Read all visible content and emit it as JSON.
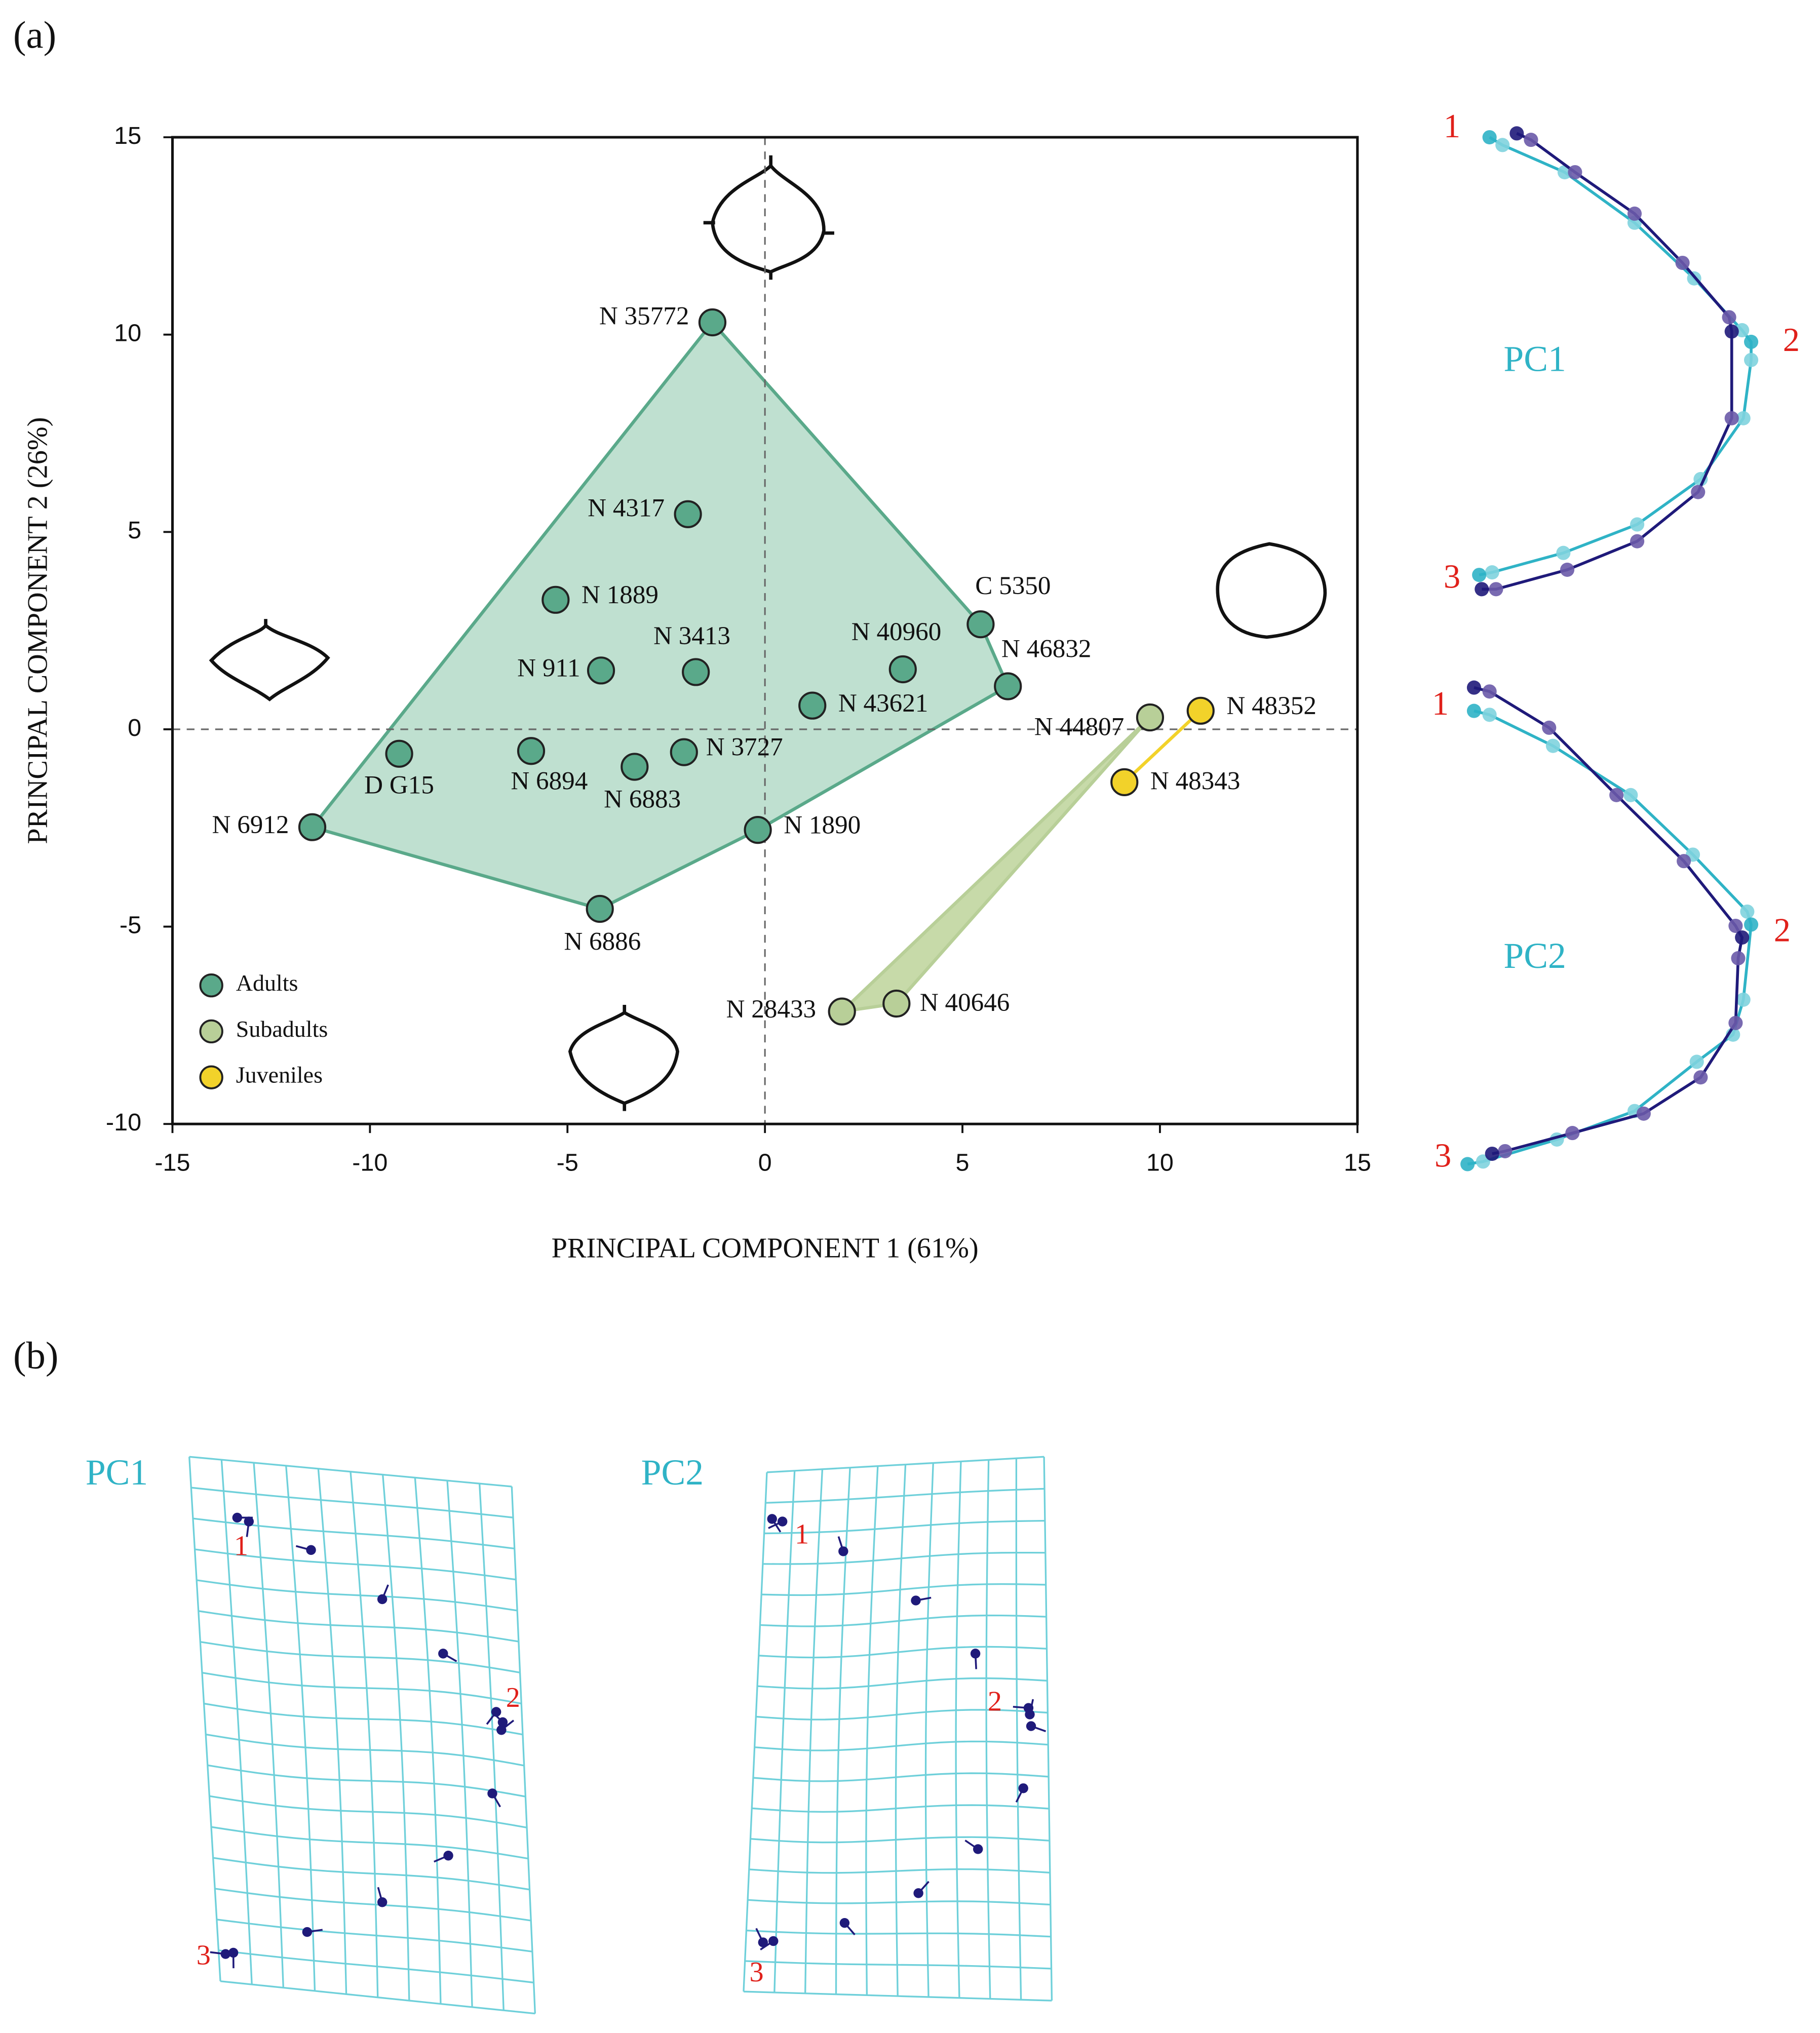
{
  "panel_labels": [
    "(a)",
    "(b)"
  ],
  "chart_data": {
    "type": "scatter",
    "xlabel": "PRINCIPAL COMPONENT 1 (61%)",
    "ylabel": "PRINCIPAL COMPONENT 2 (26%)",
    "xlim": [
      -15,
      15
    ],
    "ylim": [
      -10,
      15
    ],
    "xticks": [
      -15,
      -10,
      -5,
      0,
      5,
      10,
      15
    ],
    "yticks": [
      -10,
      -5,
      0,
      5,
      10,
      15
    ],
    "zero_lines": true,
    "convex_hull": true,
    "legend": "lower left",
    "series": [
      {
        "name": "Adults",
        "color": "#5aa98a",
        "hull_color": "#bfe0d0",
        "x": [
          -1.33,
          -1.95,
          -5.3,
          5.46,
          3.49,
          6.15,
          -4.15,
          -1.75,
          1.2,
          -9.26,
          -5.92,
          -3.3,
          -2.05,
          -11.46,
          -0.18,
          -4.18
        ],
        "values": [
          10.31,
          5.45,
          3.28,
          2.66,
          1.52,
          1.09,
          1.49,
          1.45,
          0.6,
          -0.62,
          -0.55,
          -0.95,
          -0.58,
          -2.48,
          -2.55,
          -4.55
        ],
        "point_labels": [
          "N 35772",
          "N 4317",
          "N 1889",
          "C 5350",
          "N 40960",
          "N 46832",
          "N 911",
          "N 3413",
          "N 43621",
          "D G15",
          "N 6894",
          "N 6883",
          "N 3727",
          "N 6912",
          "N 1890",
          "N 6886"
        ]
      },
      {
        "name": "Subadults",
        "color": "#b8cf98",
        "hull_color": "#c7daa9",
        "x": [
          9.75,
          1.95,
          3.33
        ],
        "values": [
          0.3,
          -7.15,
          -6.95
        ],
        "point_labels": [
          "N 44807",
          "N 28433",
          "N 40646"
        ]
      },
      {
        "name": "Juveniles",
        "color": "#f2d22a",
        "hull_color": "#f2d22a",
        "x": [
          11.03,
          9.1
        ],
        "values": [
          0.47,
          -1.34
        ],
        "point_labels": [
          "N 48352",
          "N 48343"
        ]
      }
    ]
  },
  "consensus_panels": [
    {
      "label": "PC1",
      "landmarks": [
        "1",
        "2",
        "3"
      ]
    },
    {
      "label": "PC2",
      "landmarks": [
        "1",
        "2",
        "3"
      ]
    }
  ],
  "grid_panels": [
    {
      "label": "PC1",
      "landmarks": [
        "1",
        "2",
        "3"
      ]
    },
    {
      "label": "PC2",
      "landmarks": [
        "1",
        "2",
        "3"
      ]
    }
  ]
}
